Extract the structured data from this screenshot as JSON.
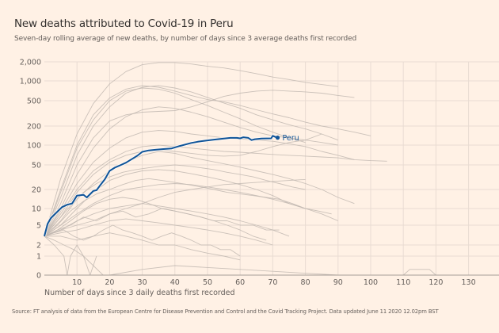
{
  "chart_data": {
    "type": "line",
    "title": "New deaths attributed to Covid-19 in Peru",
    "subtitle": "Seven-day rolling average of new deaths, by number of days since 3 average deaths first recorded",
    "xlabel": "Number of days since 3 daily deaths first recorded",
    "ylabel": "",
    "yscale": "symlog",
    "xlim": [
      0,
      140
    ],
    "ylim": [
      0,
      2000
    ],
    "grid": true,
    "x_ticks": [
      10,
      20,
      30,
      40,
      50,
      60,
      70,
      80,
      90,
      100,
      110,
      120,
      130
    ],
    "x_tick_labels": [
      "10",
      "20",
      "30",
      "40",
      "50",
      "60",
      "70",
      "80",
      "90",
      "100",
      "110",
      "120",
      "130"
    ],
    "y_ticks": [
      0,
      1,
      2,
      5,
      10,
      20,
      50,
      100,
      200,
      500,
      1000,
      2000
    ],
    "y_tick_labels": [
      "0",
      "1",
      "2",
      "5",
      "10",
      "20",
      "50",
      "100",
      "200",
      "500",
      "1,000",
      "2,000"
    ],
    "highlight": {
      "name": "Peru",
      "color": "#0f5499",
      "x": [
        0,
        1,
        2,
        3.5,
        5.4,
        7,
        8.5,
        10,
        12,
        13,
        15,
        16,
        17,
        18.5,
        20,
        21.5,
        23.5,
        25,
        27,
        28.5,
        30,
        32,
        34,
        36.5,
        39,
        41.5,
        45,
        47,
        49,
        52,
        55,
        57,
        59,
        60,
        61,
        62.5,
        63.5,
        64.5,
        66.5,
        69.5,
        70,
        71
      ],
      "y": [
        3,
        5.3,
        6.7,
        8.2,
        10.5,
        11.5,
        12,
        16,
        16.5,
        15,
        19,
        19.5,
        23,
        29,
        40,
        45,
        50,
        54,
        62,
        69,
        79,
        83,
        85,
        87,
        89,
        97,
        108,
        113,
        117,
        122,
        127,
        130,
        130,
        128,
        133,
        130,
        120,
        124,
        127,
        128,
        140,
        133
      ]
    },
    "other_series_color": "#c2b9b1",
    "other_series": [
      {
        "x": [
          0,
          5,
          10,
          15,
          20,
          25,
          30,
          35,
          40,
          45,
          50,
          55,
          60,
          65,
          70,
          75,
          80,
          85,
          90
        ],
        "y": [
          3,
          30,
          150,
          450,
          900,
          1400,
          1800,
          1950,
          1950,
          1850,
          1700,
          1600,
          1450,
          1300,
          1150,
          1050,
          950,
          880,
          820
        ]
      },
      {
        "x": [
          0,
          5,
          10,
          15,
          20,
          25,
          30,
          35,
          40,
          45,
          50,
          55,
          60,
          65,
          70,
          75,
          80,
          85,
          90,
          95,
          100
        ],
        "y": [
          3,
          20,
          100,
          300,
          550,
          750,
          850,
          800,
          700,
          600,
          520,
          480,
          420,
          360,
          310,
          270,
          230,
          200,
          180,
          160,
          140
        ]
      },
      {
        "x": [
          0,
          5,
          10,
          15,
          20,
          25,
          30,
          35,
          40,
          45,
          50,
          55,
          60,
          65,
          70,
          75,
          80,
          85,
          90
        ],
        "y": [
          3,
          15,
          70,
          200,
          400,
          650,
          800,
          850,
          780,
          680,
          560,
          460,
          380,
          300,
          250,
          210,
          180,
          150,
          120
        ]
      },
      {
        "x": [
          0,
          5,
          10,
          15,
          20,
          25,
          30,
          35,
          40,
          45,
          50,
          55,
          60,
          65,
          70,
          75,
          80,
          85,
          90,
          95
        ],
        "y": [
          3,
          12,
          50,
          130,
          240,
          300,
          330,
          340,
          350,
          400,
          480,
          580,
          650,
          700,
          720,
          700,
          680,
          650,
          600,
          560
        ]
      },
      {
        "x": [
          0,
          5,
          10,
          15,
          20,
          25,
          30,
          35,
          40,
          45,
          50,
          55,
          60,
          65,
          70,
          75,
          80
        ],
        "y": [
          3,
          18,
          90,
          250,
          500,
          700,
          780,
          750,
          650,
          520,
          420,
          330,
          260,
          200,
          160,
          130,
          110
        ]
      },
      {
        "x": [
          0,
          5,
          10,
          15,
          20,
          25,
          30,
          35,
          40,
          45,
          50,
          55,
          60,
          65,
          70,
          75,
          80,
          85,
          90
        ],
        "y": [
          3,
          10,
          35,
          90,
          180,
          280,
          360,
          400,
          380,
          330,
          280,
          230,
          190,
          160,
          140,
          130,
          120,
          110,
          100
        ]
      },
      {
        "x": [
          0,
          5,
          10,
          15,
          20,
          25,
          30,
          35,
          40,
          45,
          50,
          55,
          60,
          65,
          70,
          75,
          80,
          85,
          90,
          95,
          100,
          105
        ],
        "y": [
          3,
          8,
          20,
          40,
          60,
          80,
          95,
          100,
          95,
          90,
          85,
          80,
          78,
          75,
          72,
          70,
          68,
          66,
          64,
          60,
          58,
          57
        ]
      },
      {
        "x": [
          0,
          5,
          10,
          15,
          20,
          25,
          30,
          35,
          40,
          45,
          50,
          55,
          60,
          65,
          70,
          75,
          80,
          85,
          90,
          95
        ],
        "y": [
          3,
          9,
          25,
          55,
          90,
          130,
          160,
          170,
          165,
          150,
          140,
          130,
          125,
          120,
          115,
          105,
          95,
          80,
          70,
          60
        ]
      },
      {
        "x": [
          0,
          5,
          10,
          15,
          20,
          25,
          30,
          35,
          40,
          45,
          50,
          55,
          60,
          65,
          70,
          75,
          80,
          85
        ],
        "y": [
          3,
          7,
          18,
          35,
          55,
          70,
          80,
          85,
          80,
          75,
          70,
          68,
          70,
          80,
          95,
          110,
          120,
          150
        ]
      },
      {
        "x": [
          0,
          5,
          10,
          15,
          20,
          25,
          30,
          35,
          40,
          45,
          50,
          55,
          60,
          65,
          70,
          75,
          80,
          85,
          90,
          95
        ],
        "y": [
          3,
          6,
          14,
          25,
          40,
          55,
          70,
          80,
          75,
          65,
          58,
          52,
          46,
          40,
          35,
          30,
          25,
          20,
          15,
          12
        ]
      },
      {
        "x": [
          0,
          5,
          10,
          15,
          20,
          25,
          30,
          35,
          40,
          45,
          50,
          55,
          60,
          65,
          70,
          75,
          80
        ],
        "y": [
          3,
          5,
          10,
          18,
          28,
          35,
          40,
          42,
          40,
          36,
          32,
          28,
          24,
          20,
          16,
          12,
          10
        ]
      },
      {
        "x": [
          0,
          5,
          10,
          15,
          20,
          25,
          30,
          35,
          40,
          45,
          50,
          55,
          60,
          65,
          70,
          75,
          80,
          85,
          90
        ],
        "y": [
          3,
          5,
          8,
          12,
          16,
          20,
          22,
          24,
          25,
          24,
          22,
          20,
          18,
          16,
          14,
          12,
          10,
          8,
          6
        ]
      },
      {
        "x": [
          0,
          5,
          10,
          15,
          20,
          25,
          30,
          35,
          40,
          45,
          50,
          55,
          60,
          65,
          70,
          75
        ],
        "y": [
          3,
          4,
          6,
          8,
          10,
          11,
          12,
          11,
          10,
          9,
          8,
          7,
          6,
          5,
          4,
          3
        ]
      },
      {
        "x": [
          0,
          5,
          10,
          15,
          20,
          25,
          30,
          35,
          40,
          45,
          50,
          55,
          60,
          65,
          70
        ],
        "y": [
          3,
          3.5,
          4,
          5,
          6,
          6.5,
          6,
          5.5,
          5,
          4.5,
          4,
          3.5,
          3,
          2.5,
          2
        ]
      },
      {
        "x": [
          0,
          5,
          10,
          15,
          20,
          25,
          30,
          35,
          40,
          45,
          50,
          55,
          60
        ],
        "y": [
          3,
          3,
          2.5,
          3,
          3.5,
          3,
          2.5,
          2,
          2,
          1.5,
          1.2,
          1,
          0.8
        ]
      },
      {
        "x": [
          0,
          4,
          8,
          12,
          16,
          20,
          24,
          28,
          32,
          36,
          40,
          44,
          48,
          52,
          56,
          60,
          64,
          68,
          72
        ],
        "y": [
          3,
          4,
          5,
          7,
          6,
          8,
          9,
          7,
          8,
          10,
          9,
          8,
          7,
          6,
          6,
          5,
          5,
          4,
          4
        ]
      },
      {
        "x": [
          0,
          3,
          6,
          9,
          12,
          15,
          18,
          21,
          24,
          27,
          30,
          33,
          36,
          39,
          42,
          45,
          48,
          51,
          54,
          57,
          60
        ],
        "y": [
          3,
          3.5,
          4,
          3,
          2.5,
          3,
          4,
          5,
          4,
          3.5,
          3,
          2.5,
          3,
          3.5,
          3,
          2.5,
          2,
          2,
          1.5,
          1.5,
          1
        ]
      },
      {
        "x": [
          0,
          4,
          8,
          12,
          16,
          20,
          24,
          28,
          32,
          36,
          40,
          44,
          48,
          52,
          56,
          60,
          64,
          68,
          72,
          76,
          80,
          84,
          88
        ],
        "y": [
          3,
          5,
          9,
          13,
          17,
          20,
          24,
          28,
          30,
          28,
          26,
          24,
          22,
          20,
          18,
          17,
          16,
          15,
          14,
          12,
          10,
          9,
          8
        ]
      },
      {
        "x": [
          0,
          4,
          8,
          12,
          16,
          20,
          24,
          28,
          32,
          36,
          40,
          44,
          48,
          52,
          56,
          60,
          64,
          68,
          72,
          76,
          80
        ],
        "y": [
          3,
          6,
          11,
          18,
          25,
          32,
          38,
          42,
          45,
          48,
          50,
          48,
          45,
          42,
          38,
          35,
          32,
          28,
          25,
          22,
          20
        ]
      },
      {
        "x": [
          0,
          3,
          6,
          9,
          12,
          15,
          18,
          21,
          24,
          27,
          30
        ],
        "y": [
          3,
          2.5,
          2,
          1.5,
          1,
          0.5,
          0,
          0,
          0,
          0,
          0
        ]
      },
      {
        "x": [
          0,
          3,
          6,
          7,
          8,
          10,
          12,
          14,
          16
        ],
        "y": [
          3,
          2,
          1,
          0,
          1,
          2,
          1,
          0,
          1
        ]
      },
      {
        "x": [
          0,
          4,
          8,
          12,
          16,
          20,
          24,
          28,
          32,
          36,
          40,
          44,
          48,
          52,
          56,
          60,
          64,
          68
        ],
        "y": [
          3,
          4,
          6,
          9,
          12,
          14,
          15,
          14,
          12,
          10,
          9,
          8,
          7,
          6,
          5,
          4,
          3,
          2.5
        ]
      },
      {
        "x": [
          0,
          5,
          10,
          15,
          20,
          25,
          30,
          35,
          40,
          45,
          50,
          55,
          60,
          65,
          70,
          75,
          80
        ],
        "y": [
          3,
          4,
          5,
          6,
          8,
          10,
          12,
          15,
          18,
          20,
          22,
          24,
          25,
          26,
          27,
          28,
          29
        ]
      },
      {
        "x": [
          20,
          30,
          40,
          50,
          60,
          70,
          80,
          90,
          100
        ],
        "y": [
          0,
          0.3,
          0.5,
          0.4,
          0.3,
          0.2,
          0.1,
          0,
          0
        ]
      },
      {
        "x": [
          110,
          112,
          114,
          118,
          120
        ],
        "y": [
          0,
          0.3,
          0.3,
          0.3,
          0
        ]
      }
    ]
  },
  "source": "Source: FT analysis of data from the European Centre for Disease Prevention and Control and the Covid Tracking Project. Data updated June 11 2020 12.02pm BST"
}
